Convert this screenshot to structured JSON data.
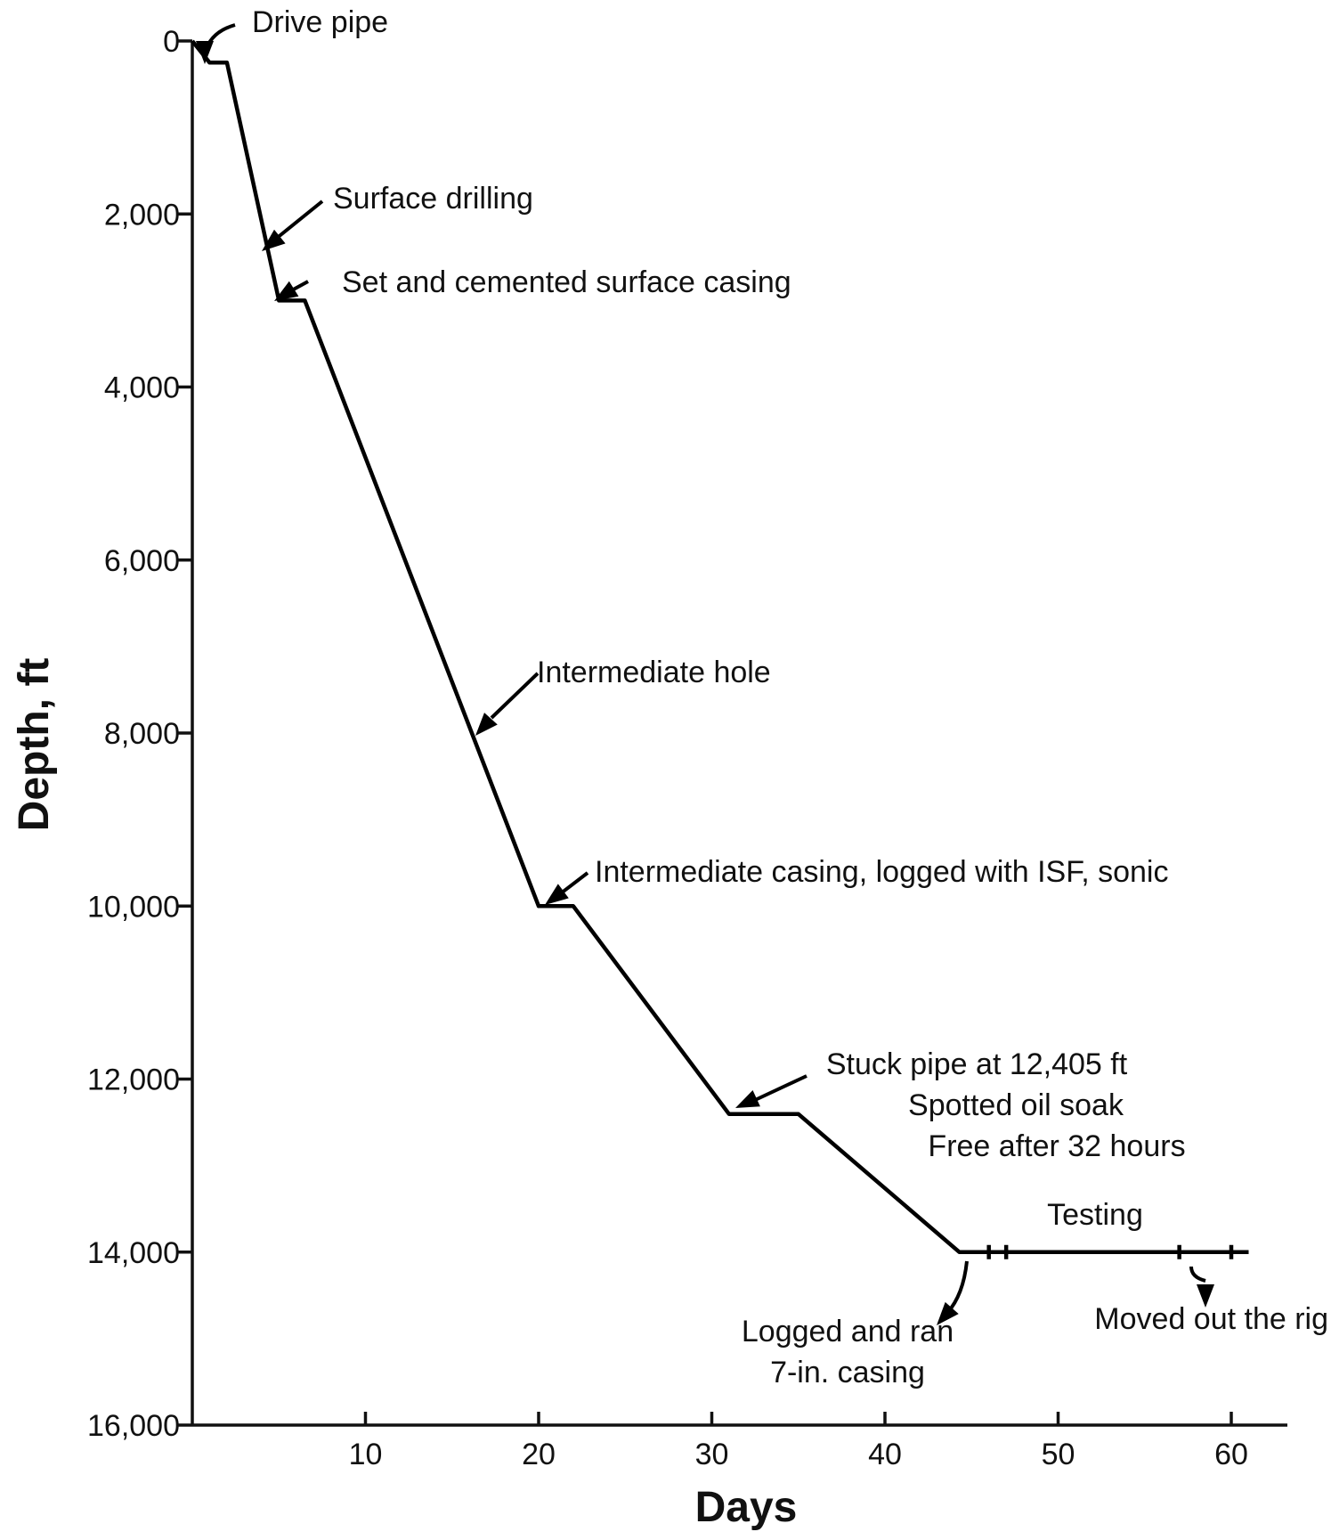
{
  "chart_data": {
    "type": "line",
    "xlabel": "Days",
    "ylabel": "Depth, ft",
    "xlim": [
      0,
      63
    ],
    "ylim": [
      0,
      16000
    ],
    "y_inverted": true,
    "x_ticks": [
      {
        "value": 10,
        "label": "10"
      },
      {
        "value": 20,
        "label": "20"
      },
      {
        "value": 30,
        "label": "30"
      },
      {
        "value": 40,
        "label": "40"
      },
      {
        "value": 50,
        "label": "50"
      },
      {
        "value": 60,
        "label": "60"
      }
    ],
    "y_ticks": [
      {
        "value": 0,
        "label": "0"
      },
      {
        "value": 2000,
        "label": "2,000"
      },
      {
        "value": 4000,
        "label": "4,000"
      },
      {
        "value": 6000,
        "label": "6,000"
      },
      {
        "value": 8000,
        "label": "8,000"
      },
      {
        "value": 10000,
        "label": "10,000"
      },
      {
        "value": 12000,
        "label": "12,000"
      },
      {
        "value": 14000,
        "label": "14,000"
      },
      {
        "value": 16000,
        "label": "16,000"
      }
    ],
    "grid": false,
    "series": [
      {
        "x": [
          0,
          1,
          2,
          5,
          6.5,
          20,
          22,
          31,
          35,
          44.3,
          61
        ],
        "y": [
          0,
          250,
          250,
          3000,
          3000,
          10000,
          10000,
          12405,
          12405,
          14000,
          14000
        ]
      }
    ],
    "event_marks": [
      {
        "x": 46,
        "y": 14000
      },
      {
        "x": 47,
        "y": 14000
      },
      {
        "x": 57,
        "y": 14000
      },
      {
        "x": 60,
        "y": 14000
      }
    ],
    "annotations": [
      {
        "lines": [
          "Drive pipe"
        ]
      },
      {
        "lines": [
          "Surface drilling"
        ]
      },
      {
        "lines": [
          "Set and cemented surface casing"
        ]
      },
      {
        "lines": [
          "Intermediate hole"
        ]
      },
      {
        "lines": [
          "Intermediate casing, logged with ISF, sonic"
        ]
      },
      {
        "lines": [
          "Stuck pipe at 12,405 ft",
          "Spotted oil soak",
          "Free after 32 hours"
        ]
      },
      {
        "lines": [
          "Testing"
        ]
      },
      {
        "lines": [
          "Logged and ran",
          "7-in. casing"
        ]
      },
      {
        "lines": [
          "Moved out the rig"
        ]
      }
    ]
  }
}
